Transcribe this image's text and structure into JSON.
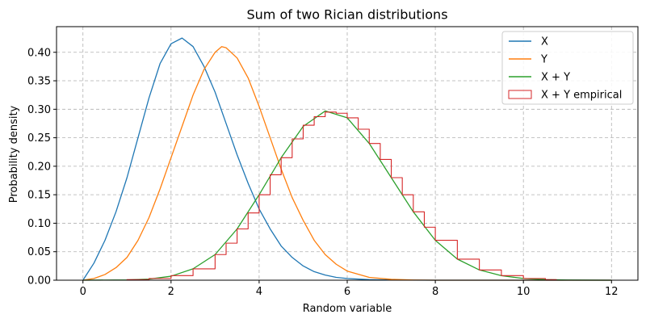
{
  "chart_data": {
    "type": "line",
    "title": "Sum of two Rician distributions",
    "xlabel": "Random variable",
    "ylabel": "Probability density",
    "xlim": [
      -0.6,
      12.6
    ],
    "ylim": [
      0,
      0.445
    ],
    "xticks": [
      0,
      2,
      4,
      6,
      8,
      10,
      12
    ],
    "xtick_labels": [
      "0",
      "2",
      "4",
      "6",
      "8",
      "10",
      "12"
    ],
    "yticks": [
      0,
      0.05,
      0.1,
      0.15,
      0.2,
      0.25,
      0.3,
      0.35,
      0.4
    ],
    "ytick_labels": [
      "0.00",
      "0.05",
      "0.10",
      "0.15",
      "0.20",
      "0.25",
      "0.30",
      "0.35",
      "0.40"
    ],
    "grid": true,
    "legend_position": "top-right",
    "series": [
      {
        "name": "X",
        "color": "#1f77b4",
        "style": "line",
        "x": [
          0,
          0.25,
          0.5,
          0.75,
          1,
          1.25,
          1.5,
          1.75,
          2,
          2.25,
          2.5,
          2.75,
          3,
          3.25,
          3.5,
          3.75,
          4,
          4.25,
          4.5,
          4.75,
          5,
          5.25,
          5.5,
          5.75,
          6,
          6.5,
          7,
          8,
          10,
          12
        ],
        "y": [
          0,
          0.03,
          0.07,
          0.12,
          0.18,
          0.25,
          0.32,
          0.38,
          0.415,
          0.425,
          0.41,
          0.375,
          0.33,
          0.275,
          0.22,
          0.17,
          0.125,
          0.09,
          0.06,
          0.04,
          0.025,
          0.015,
          0.009,
          0.005,
          0.003,
          0.001,
          0.0003,
          0,
          0,
          0
        ]
      },
      {
        "name": "Y",
        "color": "#ff7f0e",
        "style": "line",
        "x": [
          0,
          0.25,
          0.5,
          0.75,
          1,
          1.25,
          1.5,
          1.75,
          2,
          2.25,
          2.5,
          2.75,
          3,
          3.15,
          3.25,
          3.5,
          3.75,
          4,
          4.25,
          4.5,
          4.75,
          5,
          5.25,
          5.5,
          5.75,
          6,
          6.5,
          7,
          7.5,
          8,
          10,
          12
        ],
        "y": [
          0,
          0.003,
          0.01,
          0.022,
          0.04,
          0.07,
          0.11,
          0.16,
          0.215,
          0.27,
          0.325,
          0.37,
          0.4,
          0.41,
          0.408,
          0.39,
          0.355,
          0.305,
          0.25,
          0.195,
          0.145,
          0.105,
          0.07,
          0.045,
          0.028,
          0.016,
          0.005,
          0.0015,
          0.0004,
          0,
          0,
          0
        ]
      },
      {
        "name": "X + Y",
        "color": "#2ca02c",
        "style": "line",
        "x": [
          0,
          1,
          1.5,
          2,
          2.5,
          3,
          3.5,
          4,
          4.5,
          5,
          5.5,
          6,
          6.5,
          7,
          7.5,
          8,
          8.5,
          9,
          9.5,
          10,
          10.5,
          11,
          12
        ],
        "y": [
          0,
          0.0005,
          0.002,
          0.007,
          0.02,
          0.045,
          0.09,
          0.15,
          0.215,
          0.27,
          0.297,
          0.285,
          0.24,
          0.18,
          0.12,
          0.07,
          0.037,
          0.018,
          0.008,
          0.003,
          0.001,
          0.0003,
          0
        ]
      },
      {
        "name": "X + Y empirical",
        "color": "#d62728",
        "style": "step",
        "x": [
          1,
          1.5,
          2,
          2.5,
          3,
          3.25,
          3.5,
          3.75,
          4,
          4.25,
          4.5,
          4.75,
          5,
          5.25,
          5.5,
          5.75,
          6,
          6.25,
          6.5,
          6.75,
          7,
          7.25,
          7.5,
          7.75,
          8,
          8.5,
          9,
          9.5,
          10,
          10.5,
          10.75
        ],
        "y": [
          0.001,
          0.003,
          0.008,
          0.02,
          0.045,
          0.065,
          0.09,
          0.118,
          0.15,
          0.185,
          0.215,
          0.248,
          0.272,
          0.287,
          0.295,
          0.293,
          0.285,
          0.265,
          0.24,
          0.212,
          0.18,
          0.15,
          0.12,
          0.093,
          0.07,
          0.037,
          0.018,
          0.008,
          0.003,
          0.001,
          0
        ]
      }
    ]
  }
}
